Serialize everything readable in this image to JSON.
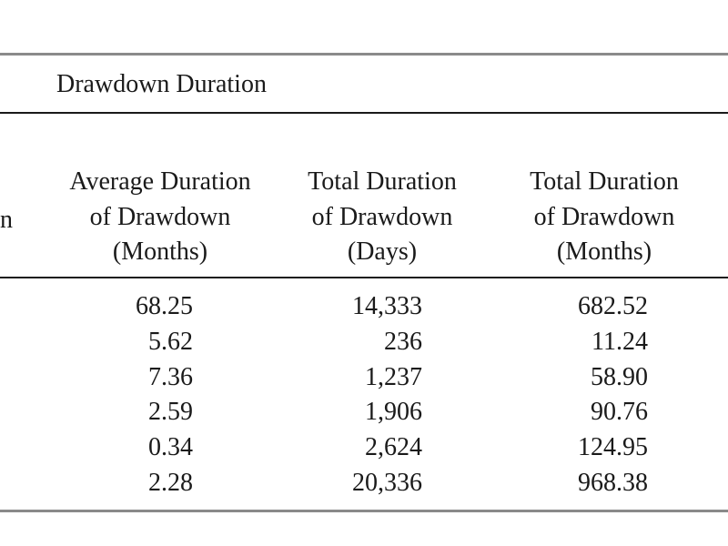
{
  "table": {
    "group_header": "Drawdown Duration",
    "clipped_header": "n",
    "columns": [
      {
        "lines": [
          "Average Duration",
          "of Drawdown",
          "(Months)"
        ]
      },
      {
        "lines": [
          "Total Duration",
          "of Drawdown",
          "(Days)"
        ]
      },
      {
        "lines": [
          "Total Duration",
          "of Drawdown",
          "(Months)"
        ]
      }
    ],
    "rows": [
      [
        "68.25",
        "14,333",
        "682.52"
      ],
      [
        "5.62",
        "236",
        "11.24"
      ],
      [
        "7.36",
        "1,237",
        "58.90"
      ],
      [
        "2.59",
        "1,906",
        "90.76"
      ],
      [
        "0.34",
        "2,624",
        "124.95"
      ],
      [
        "2.28",
        "20,336",
        "968.38"
      ]
    ]
  }
}
